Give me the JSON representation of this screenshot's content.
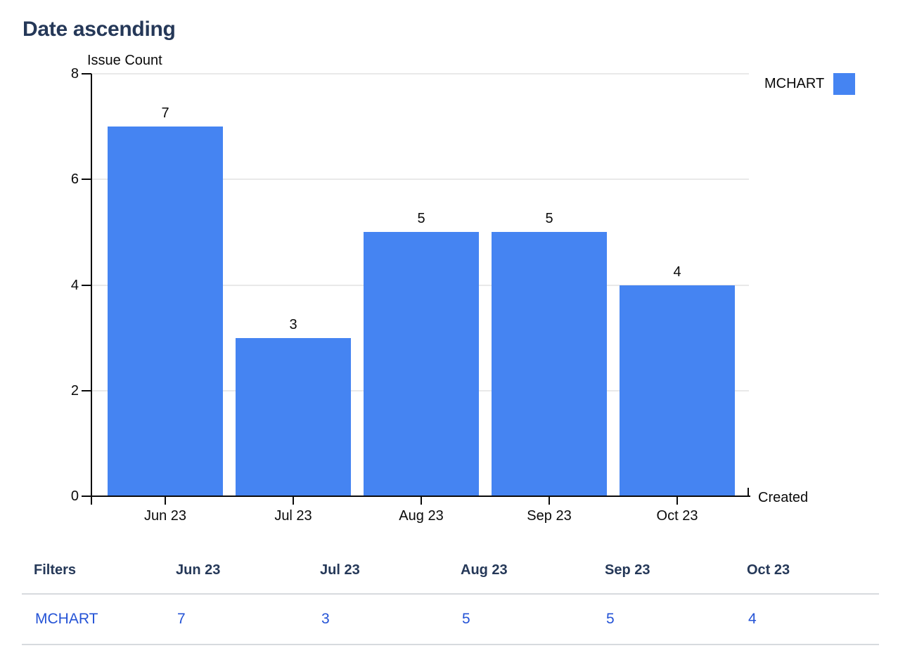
{
  "page": {
    "title": "Date ascending"
  },
  "chart_data": {
    "type": "bar",
    "title": "Date ascending",
    "categories": [
      "Jun 23",
      "Jul 23",
      "Aug 23",
      "Sep 23",
      "Oct 23"
    ],
    "series": [
      {
        "name": "MCHART",
        "values": [
          7,
          3,
          5,
          5,
          4
        ]
      }
    ],
    "xlabel": "Created",
    "ylabel": "Issue Count",
    "ylim": [
      0,
      8
    ],
    "yticks": [
      0,
      2,
      4,
      6,
      8
    ],
    "grid": true,
    "legend_position": "top-right",
    "data_labels_shown": true
  },
  "table": {
    "headers": [
      "Filters",
      "Jun 23",
      "Jul 23",
      "Aug 23",
      "Sep 23",
      "Oct 23"
    ],
    "rows": [
      {
        "label": "MCHART",
        "values": [
          "7",
          "3",
          "5",
          "5",
          "4"
        ]
      }
    ]
  },
  "colors": {
    "bar": "#4584F2",
    "heading": "#253858",
    "link": "#2453D6",
    "axis": "#0A0A0A",
    "grid": "#E9E9E9",
    "divider": "#D7DADE",
    "chart_text": "#0A0A0A"
  }
}
